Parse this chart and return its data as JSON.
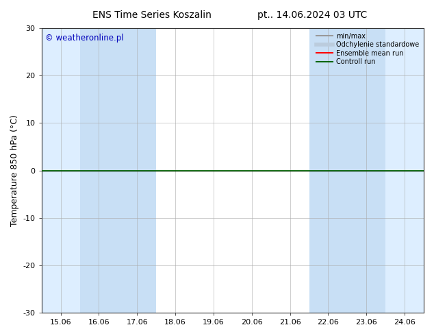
{
  "title_left": "ENS Time Series Koszalin",
  "title_right": "pt.. 14.06.2024 03 UTC",
  "ylabel": "Temperature 850 hPa (°C)",
  "xlabel": "",
  "watermark": "© weatheronline.pl",
  "watermark_color": "#0000bb",
  "ylim": [
    -30,
    30
  ],
  "yticks": [
    -30,
    -20,
    -10,
    0,
    10,
    20,
    30
  ],
  "xtick_labels": [
    "15.06",
    "16.06",
    "17.06",
    "18.06",
    "19.06",
    "20.06",
    "21.06",
    "22.06",
    "23.06",
    "24.06"
  ],
  "xtick_positions": [
    0,
    1,
    2,
    3,
    4,
    5,
    6,
    7,
    8,
    9
  ],
  "xlim": [
    -0.5,
    9.5
  ],
  "background_color": "#ffffff",
  "plot_bg_color": "#ffffff",
  "shaded_bands": [
    {
      "x_start": -0.5,
      "x_end": 0.5,
      "color": "#ddeeff"
    },
    {
      "x_start": 0.5,
      "x_end": 2.5,
      "color": "#c8dff5"
    },
    {
      "x_start": 6.5,
      "x_end": 8.5,
      "color": "#c8dff5"
    },
    {
      "x_start": 8.5,
      "x_end": 9.5,
      "color": "#ddeeff"
    }
  ],
  "zero_line_color": "#000000",
  "control_run_color": "#006600",
  "ensemble_mean_color": "#ff0000",
  "minmax_color": "#999999",
  "stddev_color": "#bbccdd",
  "legend_labels": [
    "min/max",
    "Odchylenie standardowe",
    "Ensemble mean run",
    "Controll run"
  ],
  "legend_colors": [
    "#999999",
    "#bbccdd",
    "#ff0000",
    "#006600"
  ],
  "legend_linewidths": [
    1.5,
    4,
    1.5,
    1.5
  ],
  "title_fontsize": 10,
  "axis_fontsize": 9,
  "tick_fontsize": 8
}
